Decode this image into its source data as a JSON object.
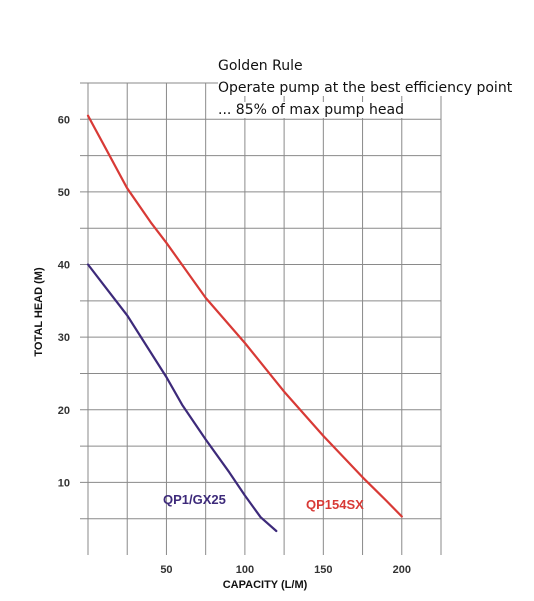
{
  "chart_data": {
    "type": "line",
    "xlabel": "CAPACITY (L/M)",
    "ylabel": "TOTAL HEAD (M)",
    "xlim": [
      0,
      225
    ],
    "ylim": [
      0,
      65
    ],
    "x_ticks": [
      50,
      100,
      150,
      200
    ],
    "y_ticks": [
      10,
      20,
      30,
      40,
      50,
      60
    ],
    "grid": true,
    "annotation": {
      "lines": [
        "Golden Rule",
        "Operate pump at the best efficiency point",
        "... 85% of max pump head"
      ]
    },
    "series": [
      {
        "name": "QP1/GX25",
        "color": "#3d2a7a",
        "x": [
          0,
          10,
          25,
          35,
          50,
          60,
          75,
          90,
          100,
          110,
          120
        ],
        "y": [
          40,
          37.2,
          33,
          29.6,
          24.5,
          20.7,
          15.9,
          11.4,
          8.2,
          5.2,
          3.3
        ]
      },
      {
        "name": "QP154SX",
        "color": "#d83a36",
        "x": [
          0,
          10,
          25,
          40,
          50,
          75,
          100,
          125,
          150,
          175,
          190,
          200
        ],
        "y": [
          60.5,
          56.5,
          50.5,
          45.8,
          43,
          35.4,
          29.2,
          22.5,
          16.4,
          10.7,
          7.5,
          5.3
        ]
      }
    ]
  }
}
